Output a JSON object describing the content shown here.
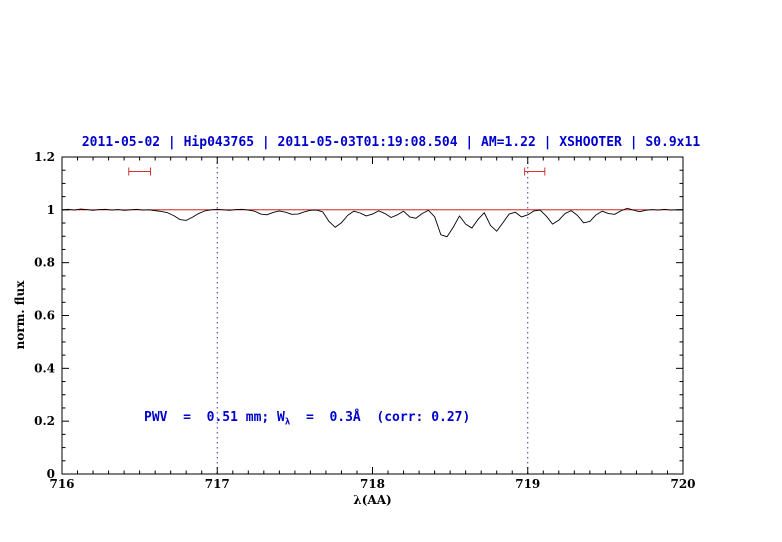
{
  "title": {
    "text": "2011-05-02 | Hip043765 | 2011-05-03T01:19:08.504 | AM=1.22 | XSHOOTER | S0.9x11",
    "color": "#0000cc"
  },
  "annotation": {
    "part1": "PWV  =  0.51 mm; W",
    "sub": "λ",
    "part2": "  =  0.3Å  (corr: 0.27)",
    "color": "#0000cc"
  },
  "chart_data": {
    "type": "line",
    "title": "2011-05-02 | Hip043765 | 2011-05-03T01:19:08.504 | AM=1.22 | XSHOOTER | S0.9x11",
    "xlabel": "λ(AA)",
    "ylabel": "norm. flux",
    "xlim": [
      716,
      720
    ],
    "ylim": [
      0,
      1.2
    ],
    "x_ticks": [
      716,
      717,
      718,
      719,
      720
    ],
    "x_minor_step": 0.1,
    "y_ticks": [
      0,
      0.2,
      0.4,
      0.6,
      0.8,
      1,
      1.2
    ],
    "y_minor_step": 0.05,
    "grid": false,
    "legend": "none",
    "vlines": {
      "x": [
        717,
        719
      ],
      "color": "#3333bb"
    },
    "continuum": {
      "y": 1.0,
      "color": "#cc0000"
    },
    "pwv_markers": {
      "color": "#cc3333",
      "items": [
        {
          "x1": 716.43,
          "x2": 716.57,
          "y": 1.145
        },
        {
          "x1": 718.98,
          "x2": 719.11,
          "y": 1.145
        }
      ]
    },
    "series": [
      {
        "name": "spectrum",
        "color": "#000000",
        "points": [
          [
            716.0,
            1.0
          ],
          [
            716.04,
            1.002
          ],
          [
            716.08,
            0.999
          ],
          [
            716.12,
            1.003
          ],
          [
            716.16,
            1.001
          ],
          [
            716.2,
            0.998
          ],
          [
            716.24,
            1.001
          ],
          [
            716.28,
            1.002
          ],
          [
            716.32,
            0.999
          ],
          [
            716.36,
            1.001
          ],
          [
            716.4,
            0.998
          ],
          [
            716.44,
            1.0
          ],
          [
            716.48,
            1.002
          ],
          [
            716.52,
            0.999
          ],
          [
            716.56,
            1.0
          ],
          [
            716.6,
            0.997
          ],
          [
            716.64,
            0.994
          ],
          [
            716.68,
            0.989
          ],
          [
            716.72,
            0.978
          ],
          [
            716.76,
            0.963
          ],
          [
            716.8,
            0.96
          ],
          [
            716.84,
            0.972
          ],
          [
            716.88,
            0.986
          ],
          [
            716.92,
            0.996
          ],
          [
            716.96,
            1.0
          ],
          [
            717.0,
            1.002
          ],
          [
            717.04,
            1.0
          ],
          [
            717.08,
            0.998
          ],
          [
            717.12,
            1.001
          ],
          [
            717.16,
            1.002
          ],
          [
            717.2,
            0.999
          ],
          [
            717.24,
            0.995
          ],
          [
            717.28,
            0.984
          ],
          [
            717.32,
            0.981
          ],
          [
            717.36,
            0.99
          ],
          [
            717.4,
            0.996
          ],
          [
            717.44,
            0.991
          ],
          [
            717.48,
            0.983
          ],
          [
            717.52,
            0.984
          ],
          [
            717.56,
            0.992
          ],
          [
            717.6,
            0.998
          ],
          [
            717.64,
            0.999
          ],
          [
            717.68,
            0.992
          ],
          [
            717.72,
            0.956
          ],
          [
            717.76,
            0.934
          ],
          [
            717.8,
            0.951
          ],
          [
            717.84,
            0.979
          ],
          [
            717.88,
            0.995
          ],
          [
            717.92,
            0.988
          ],
          [
            717.96,
            0.977
          ],
          [
            718.0,
            0.984
          ],
          [
            718.04,
            0.996
          ],
          [
            718.08,
            0.986
          ],
          [
            718.12,
            0.971
          ],
          [
            718.16,
            0.981
          ],
          [
            718.2,
            0.995
          ],
          [
            718.24,
            0.973
          ],
          [
            718.28,
            0.968
          ],
          [
            718.32,
            0.986
          ],
          [
            718.36,
            0.998
          ],
          [
            718.4,
            0.974
          ],
          [
            718.44,
            0.906
          ],
          [
            718.48,
            0.898
          ],
          [
            718.52,
            0.934
          ],
          [
            718.56,
            0.977
          ],
          [
            718.6,
            0.946
          ],
          [
            718.64,
            0.931
          ],
          [
            718.68,
            0.964
          ],
          [
            718.72,
            0.989
          ],
          [
            718.76,
            0.941
          ],
          [
            718.8,
            0.919
          ],
          [
            718.84,
            0.951
          ],
          [
            718.88,
            0.984
          ],
          [
            718.92,
            0.991
          ],
          [
            718.96,
            0.973
          ],
          [
            719.0,
            0.981
          ],
          [
            719.04,
            0.996
          ],
          [
            719.08,
            0.999
          ],
          [
            719.12,
            0.976
          ],
          [
            719.16,
            0.946
          ],
          [
            719.2,
            0.961
          ],
          [
            719.24,
            0.986
          ],
          [
            719.28,
            0.997
          ],
          [
            719.32,
            0.979
          ],
          [
            719.36,
            0.951
          ],
          [
            719.4,
            0.956
          ],
          [
            719.44,
            0.981
          ],
          [
            719.48,
            0.995
          ],
          [
            719.52,
            0.986
          ],
          [
            719.56,
            0.983
          ],
          [
            719.6,
            0.996
          ],
          [
            719.64,
            1.006
          ],
          [
            719.68,
            0.999
          ],
          [
            719.72,
            0.993
          ],
          [
            719.76,
            0.998
          ],
          [
            719.8,
            1.001
          ],
          [
            719.84,
            0.999
          ],
          [
            719.88,
            1.002
          ],
          [
            719.92,
            0.999
          ],
          [
            719.96,
            1.0
          ],
          [
            720.0,
            1.001
          ]
        ]
      }
    ]
  }
}
